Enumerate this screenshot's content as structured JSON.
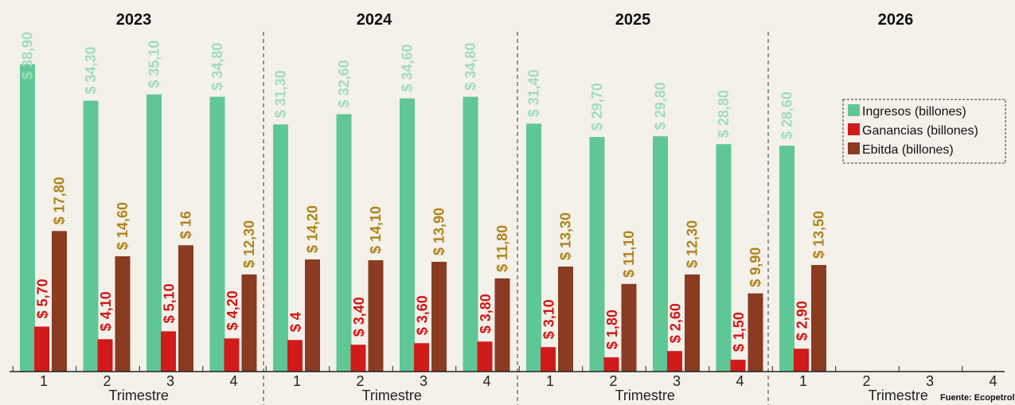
{
  "chart_data": {
    "type": "bar",
    "xlabel": "Trimestre",
    "source": "Fuente: Ecopetrol",
    "ylim": [
      0,
      40
    ],
    "colors": {
      "ingresos": "#5fc795",
      "ganancias": "#d11a1a",
      "ebitda": "#8a3b22",
      "ingresos_label": "#9fddb9",
      "ganancias_label": "#d41515",
      "ebitda_label": "#b0831a"
    },
    "legend": [
      {
        "key": "ingresos",
        "label": "Ingresos (billones)"
      },
      {
        "key": "ganancias",
        "label": "Ganancias (billones)"
      },
      {
        "key": "ebitda",
        "label": "Ebitda (billones)"
      }
    ],
    "legend_position": "top-right",
    "years": [
      {
        "year": "2023",
        "quarters": [
          {
            "q": "1",
            "ingresos": 38.9,
            "ingresos_label": "$ 38,90",
            "ganancias": 5.7,
            "ganancias_label": "$ 5,70",
            "ebitda": 17.8,
            "ebitda_label": "$ 17,80"
          },
          {
            "q": "2",
            "ingresos": 34.3,
            "ingresos_label": "$ 34,30",
            "ganancias": 4.1,
            "ganancias_label": "$ 4,10",
            "ebitda": 14.6,
            "ebitda_label": "$ 14,60"
          },
          {
            "q": "3",
            "ingresos": 35.1,
            "ingresos_label": "$ 35,10",
            "ganancias": 5.1,
            "ganancias_label": "$ 5,10",
            "ebitda": 16.0,
            "ebitda_label": "$ 16"
          },
          {
            "q": "4",
            "ingresos": 34.8,
            "ingresos_label": "$ 34,80",
            "ganancias": 4.2,
            "ganancias_label": "$ 4,20",
            "ebitda": 12.3,
            "ebitda_label": "$ 12,30"
          }
        ]
      },
      {
        "year": "2024",
        "quarters": [
          {
            "q": "1",
            "ingresos": 31.3,
            "ingresos_label": "$ 31,30",
            "ganancias": 4.0,
            "ganancias_label": "$ 4",
            "ebitda": 14.2,
            "ebitda_label": "$ 14,20"
          },
          {
            "q": "2",
            "ingresos": 32.6,
            "ingresos_label": "$ 32,60",
            "ganancias": 3.4,
            "ganancias_label": "$ 3,40",
            "ebitda": 14.1,
            "ebitda_label": "$ 14,10"
          },
          {
            "q": "3",
            "ingresos": 34.6,
            "ingresos_label": "$ 34,60",
            "ganancias": 3.6,
            "ganancias_label": "$ 3,60",
            "ebitda": 13.9,
            "ebitda_label": "$ 13,90"
          },
          {
            "q": "4",
            "ingresos": 34.8,
            "ingresos_label": "$ 34,80",
            "ganancias": 3.8,
            "ganancias_label": "$ 3,80",
            "ebitda": 11.8,
            "ebitda_label": "$ 11,80"
          }
        ]
      },
      {
        "year": "2025",
        "quarters": [
          {
            "q": "1",
            "ingresos": 31.4,
            "ingresos_label": "$ 31,40",
            "ganancias": 3.1,
            "ganancias_label": "$ 3,10",
            "ebitda": 13.3,
            "ebitda_label": "$ 13,30"
          },
          {
            "q": "2",
            "ingresos": 29.7,
            "ingresos_label": "$ 29,70",
            "ganancias": 1.8,
            "ganancias_label": "$ 1,80",
            "ebitda": 11.1,
            "ebitda_label": "$ 11,10"
          },
          {
            "q": "3",
            "ingresos": 29.8,
            "ingresos_label": "$ 29,80",
            "ganancias": 2.6,
            "ganancias_label": "$ 2,60",
            "ebitda": 12.3,
            "ebitda_label": "$ 12,30"
          },
          {
            "q": "4",
            "ingresos": 28.8,
            "ingresos_label": "$ 28,80",
            "ganancias": 1.5,
            "ganancias_label": "$ 1,50",
            "ebitda": 9.9,
            "ebitda_label": "$ 9,90"
          }
        ]
      },
      {
        "year": "2026",
        "quarters": [
          {
            "q": "1",
            "ingresos": 28.6,
            "ingresos_label": "$ 28,60",
            "ganancias": 2.9,
            "ganancias_label": "$ 2,90",
            "ebitda": 13.5,
            "ebitda_label": "$ 13,50"
          },
          {
            "q": "2"
          },
          {
            "q": "3"
          },
          {
            "q": "4"
          }
        ]
      }
    ]
  }
}
